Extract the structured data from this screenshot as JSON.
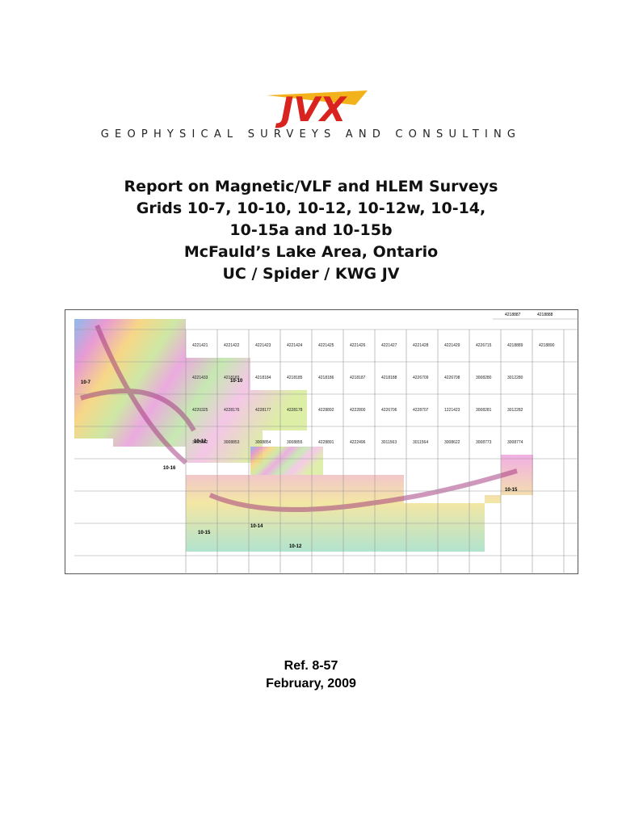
{
  "logo": {
    "mark": "JVX",
    "tagline": "GEOPHYSICAL SURVEYS AND CONSULTING"
  },
  "title": [
    "Report on Magnetic/VLF and HLEM Surveys",
    "Grids 10-7, 10-10, 10-12, 10-12w, 10-14,",
    "10-15a and 10-15b",
    "McFauld’s Lake Area, Ontario",
    "UC / Spider / KWG JV"
  ],
  "map": {
    "top_claims": [
      "4218887",
      "4218888"
    ],
    "claim_rows": [
      [
        "4221421",
        "4221422",
        "4221423",
        "4221424",
        "4221425",
        "4221426",
        "4221427",
        "4221428",
        "4221429",
        "4226715",
        "4218889",
        "4218890"
      ],
      [
        "4221433",
        "4218183",
        "4218184",
        "4218185",
        "4218186",
        "4218187",
        "4218188",
        "4226709",
        "4226708",
        "3008280",
        "3012280"
      ],
      [
        "4220325",
        "4228176",
        "4228177",
        "4228178",
        "4228892",
        "4222800",
        "4226706",
        "4228707",
        "1221423",
        "3008281",
        "3012282"
      ],
      [
        "3008852",
        "3008853",
        "3008854",
        "3008855",
        "4228891",
        "4222496",
        "3011563",
        "3011564",
        "3008622",
        "3008773",
        "3008774"
      ]
    ],
    "grid_labels": [
      "10-7",
      "10-10",
      "10-12",
      "10-12",
      "10-14",
      "10-15",
      "10-15",
      "10-16"
    ]
  },
  "ref": "Ref. 8-57",
  "date": "February, 2009"
}
